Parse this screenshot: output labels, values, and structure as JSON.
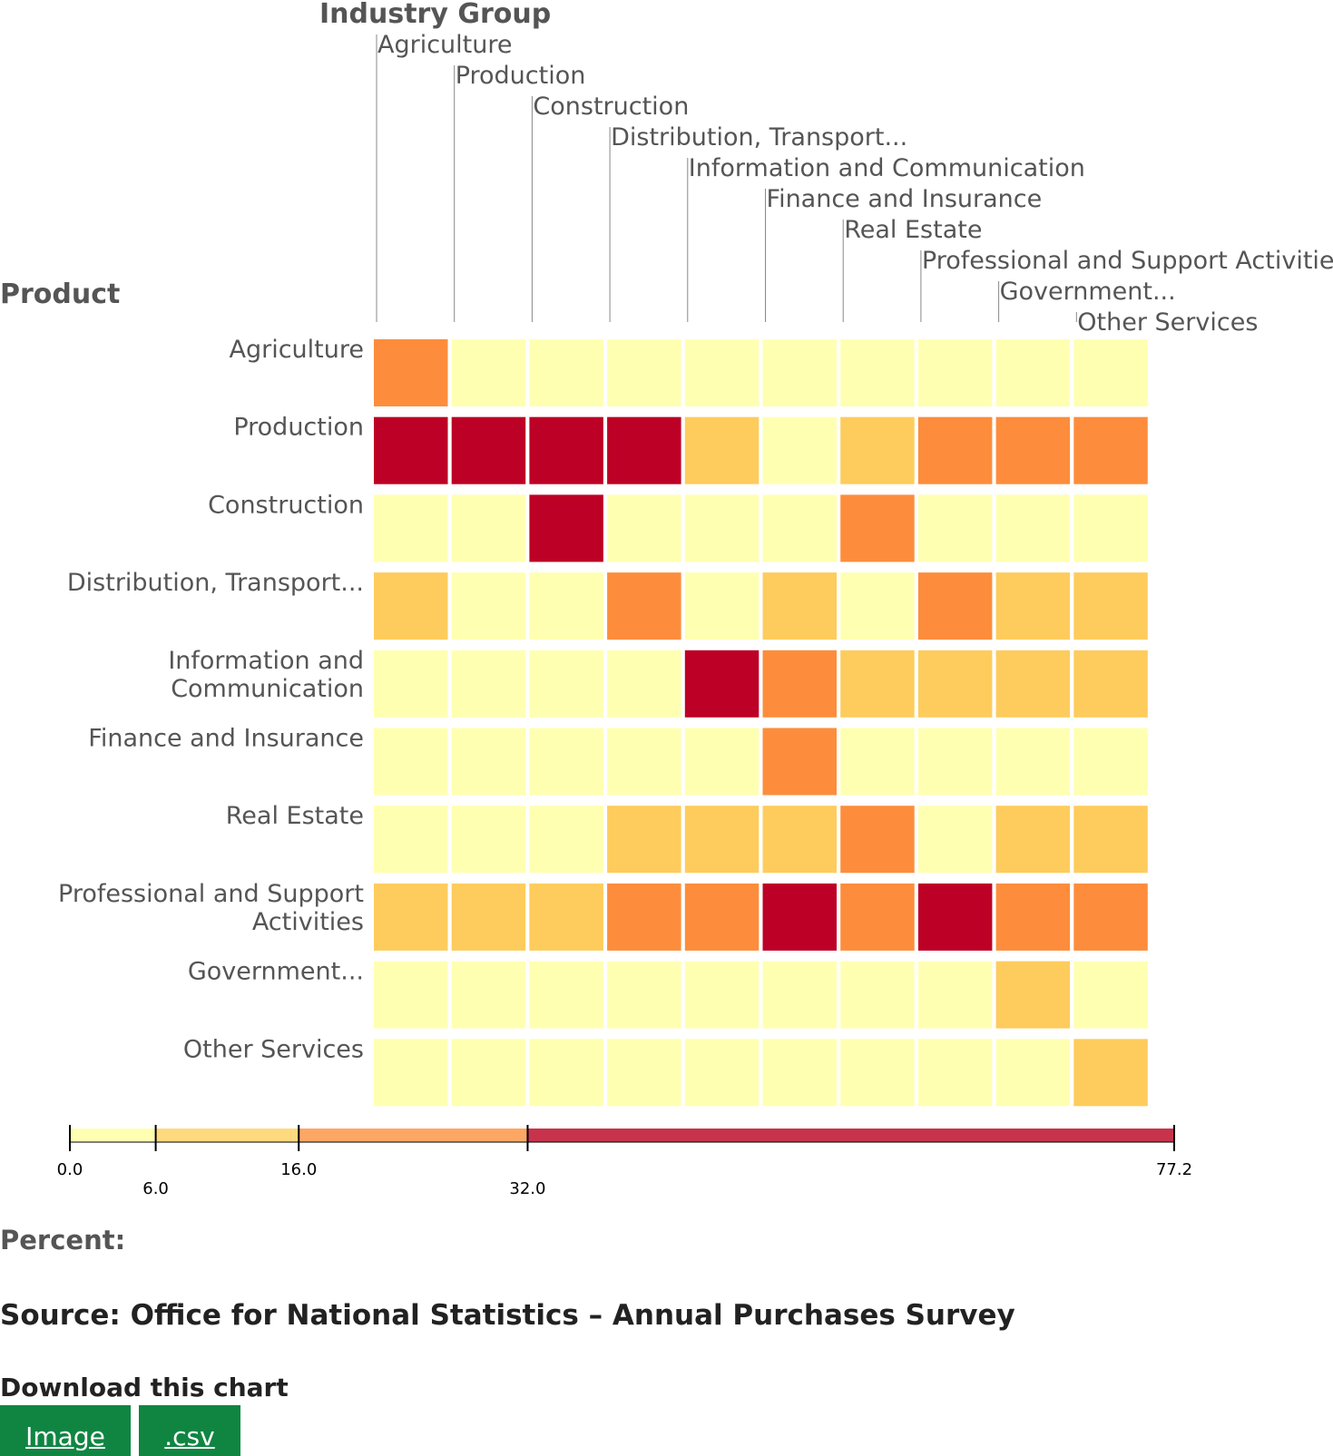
{
  "chart_data": {
    "type": "heatmap",
    "title": "",
    "xlabel": "Industry Group",
    "ylabel": "Product",
    "columns": [
      "Agriculture",
      "Production",
      "Construction",
      "Distribution, Transport...",
      "Information and Communication",
      "Finance and Insurance",
      "Real Estate",
      "Professional and Support Activities",
      "Government...",
      "Other Services"
    ],
    "rows": [
      [
        "Agriculture"
      ],
      [
        "Production"
      ],
      [
        "Construction"
      ],
      [
        "Distribution, Transport..."
      ],
      [
        "Information and",
        "Communication"
      ],
      [
        "Finance and Insurance"
      ],
      [
        "Real Estate"
      ],
      [
        "Professional and Support",
        "Activities"
      ],
      [
        "Government..."
      ],
      [
        "Other Services"
      ]
    ],
    "values": [
      [
        24,
        2,
        1,
        1,
        1,
        1,
        1,
        1,
        2,
        2
      ],
      [
        50,
        45,
        42,
        38,
        12,
        2,
        11,
        20,
        22,
        22
      ],
      [
        1,
        1,
        45,
        3,
        1,
        0,
        20,
        2,
        3,
        3
      ],
      [
        8,
        3,
        3,
        20,
        5,
        10,
        4,
        22,
        10,
        10
      ],
      [
        1,
        1,
        1,
        2,
        60,
        20,
        10,
        12,
        12,
        12
      ],
      [
        0,
        0,
        0,
        0,
        1,
        25,
        2,
        1,
        2,
        1
      ],
      [
        1,
        1,
        2,
        9,
        7,
        8,
        22,
        4,
        10,
        10
      ],
      [
        10,
        12,
        12,
        22,
        22,
        45,
        22,
        50,
        22,
        22
      ],
      [
        0,
        0,
        0,
        0,
        0,
        0,
        0,
        0,
        8,
        1
      ],
      [
        1,
        1,
        1,
        1,
        1,
        1,
        1,
        1,
        2,
        9
      ]
    ],
    "value_unit": "Percent",
    "legend": {
      "breaks": [
        0.0,
        6.0,
        16.0,
        32.0,
        77.2
      ],
      "break_labels": [
        "0.0",
        "6.0",
        "16.0",
        "32.0",
        "77.2"
      ],
      "colors": [
        "#FFFFB2",
        "#FECC5C",
        "#FD8D3C",
        "#BD0026"
      ],
      "legend_colors": [
        "#FFFFB2",
        "#FED97D",
        "#FDA765",
        "#C8334C"
      ]
    },
    "grid": false
  },
  "footer": {
    "percent_label": "Percent:",
    "source": "Source: Office for National Statistics – Annual Purchases Survey",
    "download_title": "Download this chart",
    "image_button": "Image",
    "csv_button": ".csv"
  }
}
